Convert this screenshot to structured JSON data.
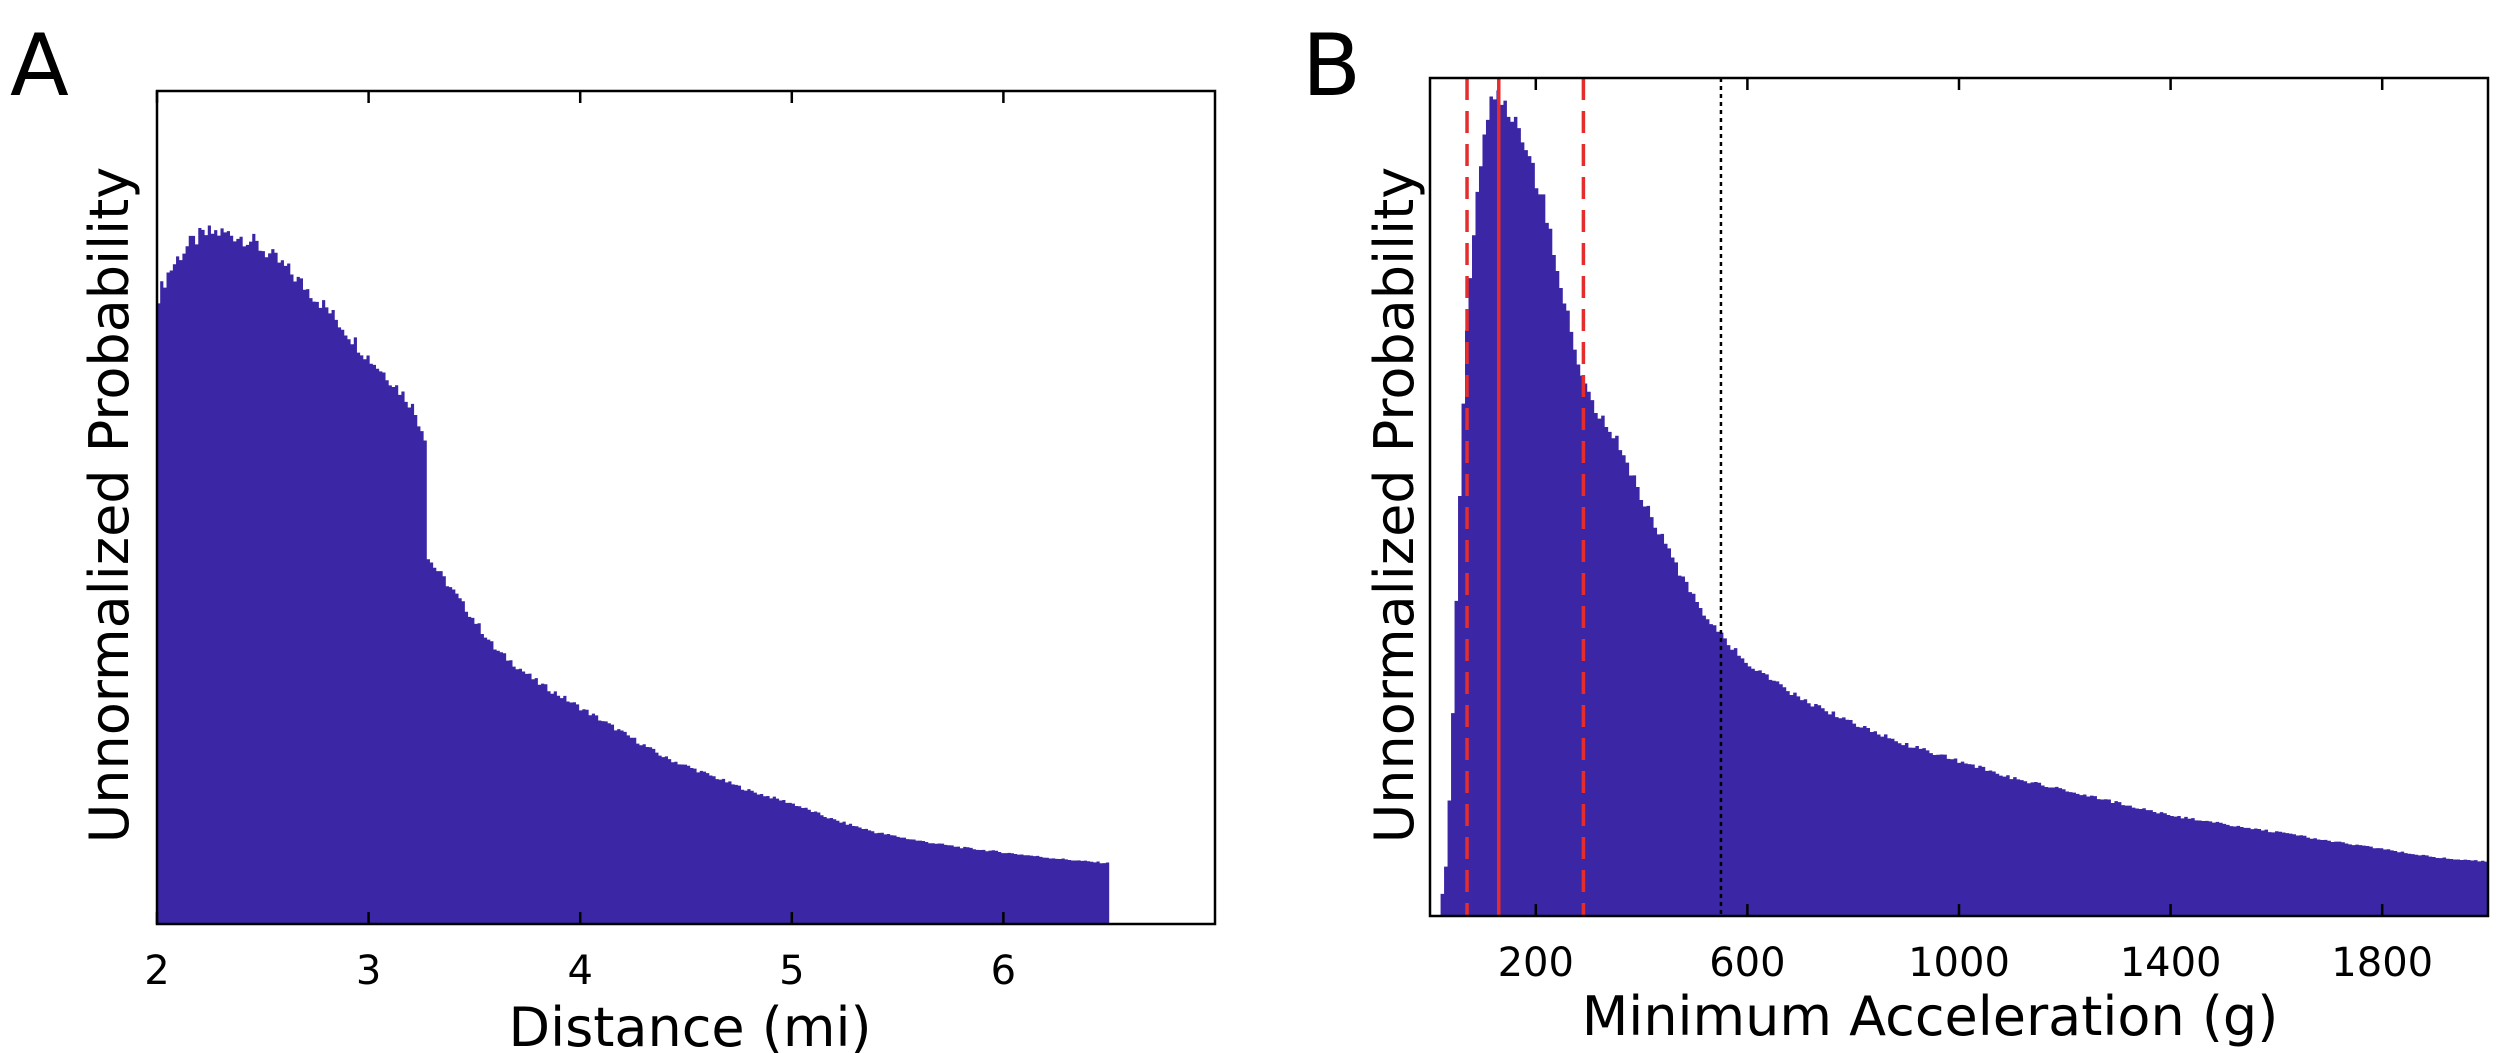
{
  "colors": {
    "fill": "#3b27a6",
    "median": "#e52d2d",
    "threshold": "#000000",
    "axes": "#000000"
  },
  "chart_data": [
    {
      "panel": "A",
      "type": "bar",
      "subtype": "histogram",
      "xlabel": "Distance (mi)",
      "ylabel": "Unnormalized Probability",
      "xlim": [
        2.0,
        7.0
      ],
      "ylim": [
        0,
        100
      ],
      "x_ticks": [
        2,
        3,
        4,
        5,
        6
      ],
      "data_end_x": 6.5,
      "series": [
        {
          "name": "distance",
          "x": [
            2.0,
            2.05,
            2.1,
            2.15,
            2.2,
            2.25,
            2.3,
            2.35,
            2.4,
            2.45,
            2.5,
            2.6,
            2.7,
            2.8,
            2.9,
            3.0,
            3.1,
            3.2,
            3.27,
            3.28,
            3.4,
            3.5,
            3.6,
            3.7,
            3.8,
            3.9,
            4.0,
            4.2,
            4.4,
            4.6,
            4.8,
            5.0,
            5.2,
            5.4,
            5.6,
            5.8,
            6.0,
            6.2,
            6.4,
            6.5
          ],
          "values": [
            75,
            78,
            80,
            81.5,
            82.5,
            83,
            83,
            82.8,
            82.5,
            82,
            81,
            79,
            76.5,
            74,
            71,
            68,
            65.5,
            62.5,
            58.5,
            44,
            40,
            36.5,
            33,
            31,
            29,
            27.5,
            26,
            23,
            20,
            18,
            16,
            14.5,
            12.5,
            11,
            10,
            9.2,
            8.6,
            8.0,
            7.5,
            7.3
          ]
        }
      ]
    },
    {
      "panel": "B",
      "type": "bar",
      "subtype": "histogram",
      "xlabel": "Minimum Acceleration (g)",
      "ylabel": "Unnormalized Probability",
      "xlim": [
        0,
        2000
      ],
      "ylim": [
        0,
        100
      ],
      "x_ticks": [
        200,
        600,
        1000,
        1400,
        1800
      ],
      "vertical_lines": [
        {
          "x": 130,
          "role": "median",
          "style": "solid",
          "color": "#e52d2d"
        },
        {
          "x": 70,
          "role": "lower-bound",
          "style": "dashed",
          "color": "#e52d2d"
        },
        {
          "x": 290,
          "role": "upper-bound",
          "style": "dashed",
          "color": "#e52d2d"
        },
        {
          "x": 550,
          "role": "threshold",
          "style": "dotted",
          "color": "#000000"
        }
      ],
      "series": [
        {
          "name": "min_acceleration",
          "x": [
            20,
            30,
            40,
            50,
            60,
            70,
            80,
            90,
            100,
            110,
            120,
            130,
            140,
            150,
            160,
            180,
            200,
            220,
            240,
            260,
            280,
            300,
            320,
            340,
            360,
            400,
            440,
            480,
            520,
            560,
            600,
            700,
            800,
            900,
            1000,
            1100,
            1200,
            1300,
            1400,
            1500,
            1600,
            1700,
            1800,
            1900,
            2000
          ],
          "values": [
            1,
            6,
            18,
            38,
            58,
            70,
            80,
            87,
            92,
            96,
            98,
            98,
            97,
            96,
            95,
            92,
            88,
            84,
            78,
            72,
            66,
            62,
            60,
            58,
            56,
            50,
            45,
            40,
            36,
            33,
            30,
            26,
            23,
            20.5,
            18.5,
            16.5,
            15,
            13.5,
            12,
            11,
            10,
            9,
            8,
            7,
            6.5
          ]
        }
      ]
    }
  ]
}
